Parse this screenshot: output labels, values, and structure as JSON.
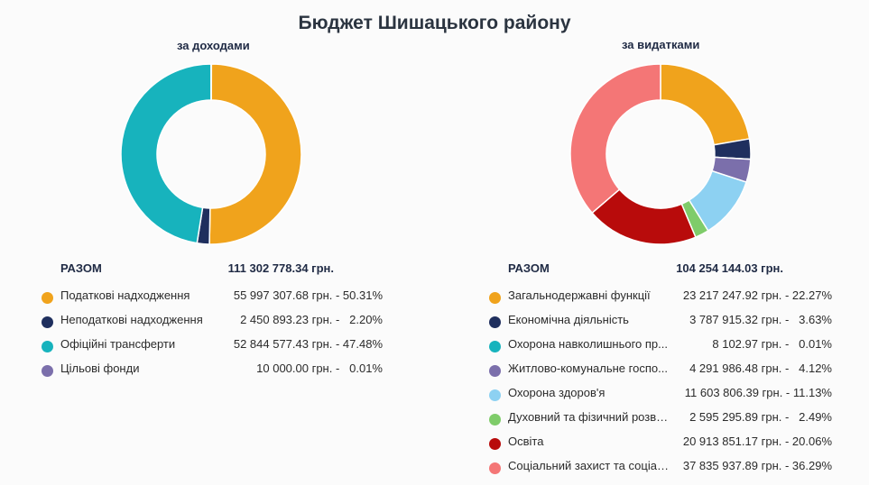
{
  "page": {
    "title": "Бюджет Шишацького району"
  },
  "chart_data": [
    {
      "type": "pie",
      "subtitle": "за доходами",
      "total_label": "РАЗОМ",
      "total_value": "111 302 778.34 грн.",
      "series": [
        {
          "name": "Податкові надходження",
          "value": 55997307.68,
          "value_text": "55 997 307.68 грн. - 50.31%",
          "color": "#f0a31c"
        },
        {
          "name": "Неподаткові надходження",
          "value": 2450893.23,
          "value_text": "2 450 893.23 грн. -   2.20%",
          "color": "#1f2f5e"
        },
        {
          "name": "Офіційні трансферти",
          "value": 52844577.43,
          "value_text": "52 844 577.43 грн. - 47.48%",
          "color": "#17b3bd"
        },
        {
          "name": "Цільові фонди",
          "value": 10000.0,
          "value_text": "10 000.00 грн. -   0.01%",
          "color": "#7b6fab"
        }
      ]
    },
    {
      "type": "pie",
      "subtitle": "за видатками",
      "total_label": "РАЗОМ",
      "total_value": "104 254 144.03 грн.",
      "series": [
        {
          "name": "Загальнодержавні функції",
          "value": 23217247.92,
          "value_text": "23 217 247.92 грн. - 22.27%",
          "color": "#f0a31c"
        },
        {
          "name": "Економічна діяльність",
          "value": 3787915.32,
          "value_text": "3 787 915.32 грн. -   3.63%",
          "color": "#1f2f5e"
        },
        {
          "name": "Охорона навколишнього пр...",
          "value": 8102.97,
          "value_text": "8 102.97 грн. -   0.01%",
          "color": "#17b3bd"
        },
        {
          "name": "Житлово-комунальне госпо...",
          "value": 4291986.48,
          "value_text": "4 291 986.48 грн. -   4.12%",
          "color": "#7b6fab"
        },
        {
          "name": "Охорона здоров'я",
          "value": 11603806.39,
          "value_text": "11 603 806.39 грн. - 11.13%",
          "color": "#8dd1f2"
        },
        {
          "name": "Духовний та фізичний розви...",
          "value": 2595295.89,
          "value_text": "2 595 295.89 грн. -   2.49%",
          "color": "#7fcc6a"
        },
        {
          "name": "Освіта",
          "value": 20913851.17,
          "value_text": "20 913 851.17 грн. - 20.06%",
          "color": "#b80b0b"
        },
        {
          "name": "Соціальний захист та соціал...",
          "value": 37835937.89,
          "value_text": "37 835 937.89 грн. - 36.29%",
          "color": "#f47676"
        }
      ]
    }
  ]
}
